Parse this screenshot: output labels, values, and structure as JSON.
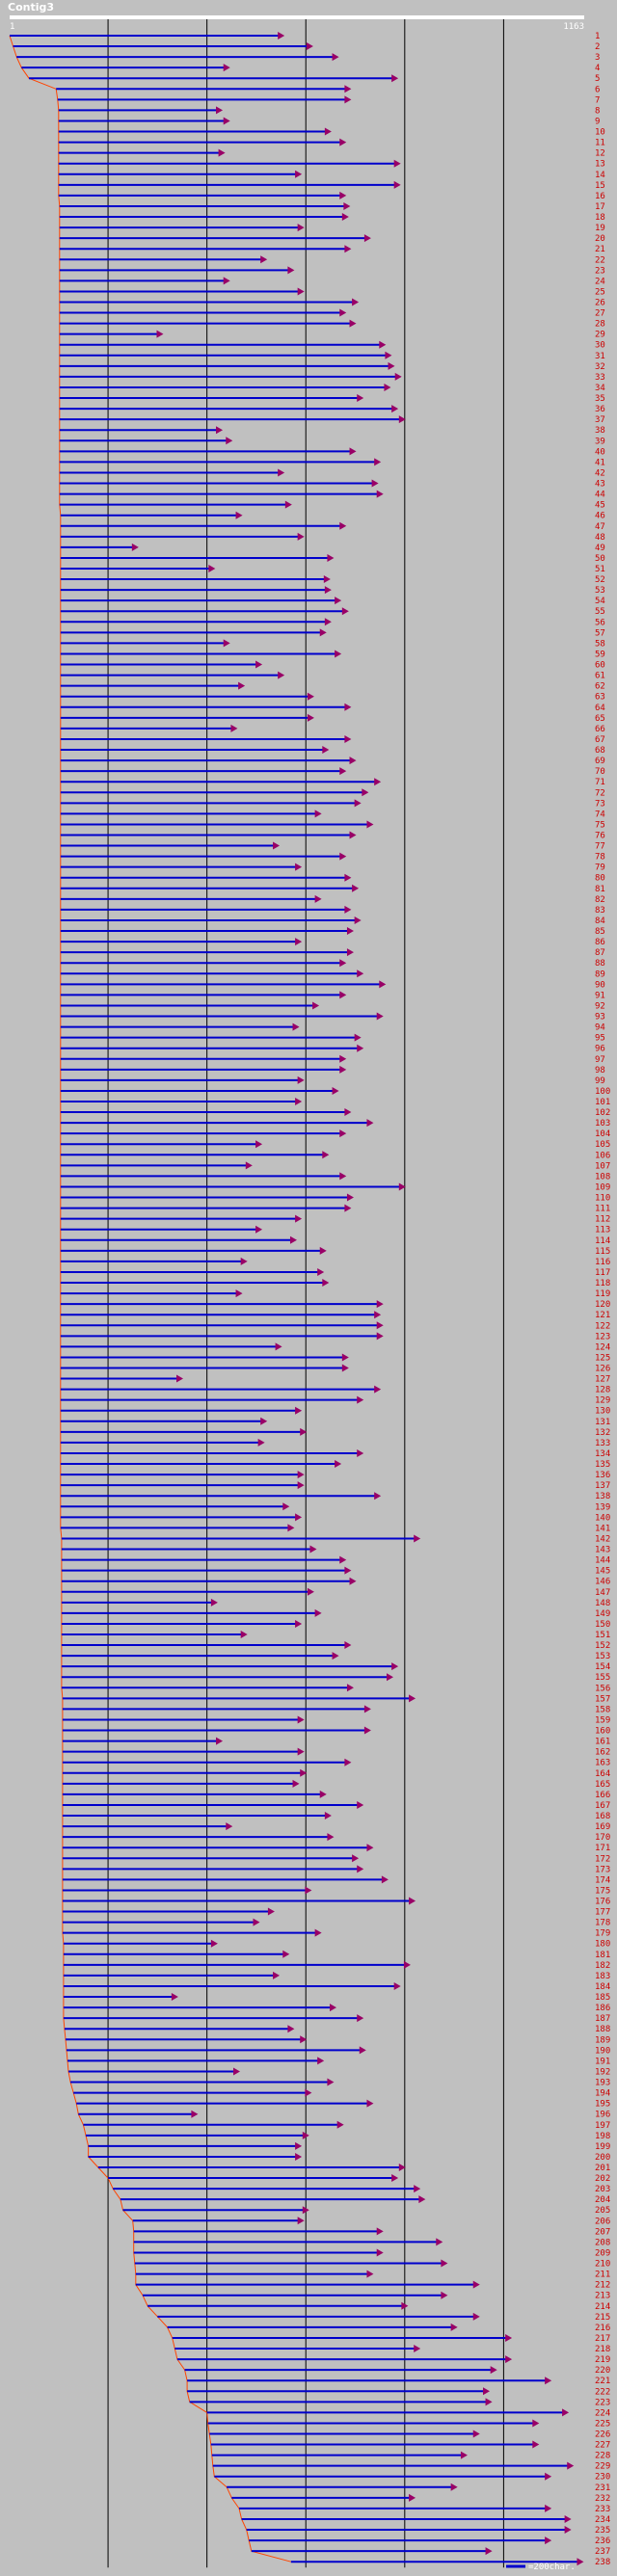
{
  "chart_data": {
    "type": "read-alignment",
    "title": "Contig3",
    "x_min_label": "1",
    "x_max_label": "1163",
    "xlim": [
      1,
      1163
    ],
    "grid_positions": [
      200,
      400,
      600,
      800,
      1000
    ],
    "legend": "=200char.",
    "colors": {
      "read": "#0000cc",
      "arrow": "#990066",
      "label": "#cc0000",
      "start_trace": "#ff4400",
      "grid": "#000000",
      "ruler": "#ffffff",
      "background": "#c0c0c0"
    },
    "reads": [
      {
        "id": "1",
        "start": 1,
        "end": 555
      },
      {
        "id": "2",
        "start": 8,
        "end": 613
      },
      {
        "id": "3",
        "start": 15,
        "end": 665
      },
      {
        "id": "4",
        "start": 25,
        "end": 445
      },
      {
        "id": "5",
        "start": 40,
        "end": 785
      },
      {
        "id": "6",
        "start": 95,
        "end": 690
      },
      {
        "id": "7",
        "start": 98,
        "end": 690
      },
      {
        "id": "8",
        "start": 100,
        "end": 430
      },
      {
        "id": "9",
        "start": 100,
        "end": 445
      },
      {
        "id": "10",
        "start": 100,
        "end": 650
      },
      {
        "id": "11",
        "start": 100,
        "end": 680
      },
      {
        "id": "12",
        "start": 100,
        "end": 435
      },
      {
        "id": "13",
        "start": 100,
        "end": 790
      },
      {
        "id": "14",
        "start": 100,
        "end": 590
      },
      {
        "id": "15",
        "start": 100,
        "end": 790
      },
      {
        "id": "16",
        "start": 100,
        "end": 680
      },
      {
        "id": "17",
        "start": 102,
        "end": 688
      },
      {
        "id": "18",
        "start": 102,
        "end": 685
      },
      {
        "id": "19",
        "start": 102,
        "end": 595
      },
      {
        "id": "20",
        "start": 102,
        "end": 730
      },
      {
        "id": "21",
        "start": 102,
        "end": 690
      },
      {
        "id": "22",
        "start": 102,
        "end": 520
      },
      {
        "id": "23",
        "start": 102,
        "end": 575
      },
      {
        "id": "24",
        "start": 102,
        "end": 445
      },
      {
        "id": "25",
        "start": 102,
        "end": 595
      },
      {
        "id": "26",
        "start": 102,
        "end": 705
      },
      {
        "id": "27",
        "start": 102,
        "end": 680
      },
      {
        "id": "28",
        "start": 102,
        "end": 700
      },
      {
        "id": "29",
        "start": 102,
        "end": 310
      },
      {
        "id": "30",
        "start": 102,
        "end": 760
      },
      {
        "id": "31",
        "start": 102,
        "end": 772
      },
      {
        "id": "32",
        "start": 102,
        "end": 778
      },
      {
        "id": "33",
        "start": 102,
        "end": 792
      },
      {
        "id": "34",
        "start": 102,
        "end": 770
      },
      {
        "id": "35",
        "start": 102,
        "end": 715
      },
      {
        "id": "36",
        "start": 102,
        "end": 785
      },
      {
        "id": "37",
        "start": 102,
        "end": 800
      },
      {
        "id": "38",
        "start": 102,
        "end": 430
      },
      {
        "id": "39",
        "start": 102,
        "end": 450
      },
      {
        "id": "40",
        "start": 102,
        "end": 700
      },
      {
        "id": "41",
        "start": 102,
        "end": 750
      },
      {
        "id": "42",
        "start": 102,
        "end": 555
      },
      {
        "id": "43",
        "start": 102,
        "end": 745
      },
      {
        "id": "44",
        "start": 102,
        "end": 755
      },
      {
        "id": "45",
        "start": 102,
        "end": 570
      },
      {
        "id": "46",
        "start": 104,
        "end": 470
      },
      {
        "id": "47",
        "start": 104,
        "end": 680
      },
      {
        "id": "48",
        "start": 104,
        "end": 595
      },
      {
        "id": "49",
        "start": 104,
        "end": 260
      },
      {
        "id": "50",
        "start": 104,
        "end": 655
      },
      {
        "id": "51",
        "start": 104,
        "end": 415
      },
      {
        "id": "52",
        "start": 104,
        "end": 648
      },
      {
        "id": "53",
        "start": 104,
        "end": 650
      },
      {
        "id": "54",
        "start": 104,
        "end": 670
      },
      {
        "id": "55",
        "start": 104,
        "end": 685
      },
      {
        "id": "56",
        "start": 104,
        "end": 650
      },
      {
        "id": "57",
        "start": 104,
        "end": 640
      },
      {
        "id": "58",
        "start": 104,
        "end": 445
      },
      {
        "id": "59",
        "start": 104,
        "end": 670
      },
      {
        "id": "60",
        "start": 104,
        "end": 510
      },
      {
        "id": "61",
        "start": 104,
        "end": 555
      },
      {
        "id": "62",
        "start": 104,
        "end": 475
      },
      {
        "id": "63",
        "start": 104,
        "end": 615
      },
      {
        "id": "64",
        "start": 104,
        "end": 690
      },
      {
        "id": "65",
        "start": 104,
        "end": 615
      },
      {
        "id": "66",
        "start": 104,
        "end": 460
      },
      {
        "id": "67",
        "start": 104,
        "end": 690
      },
      {
        "id": "68",
        "start": 104,
        "end": 645
      },
      {
        "id": "69",
        "start": 104,
        "end": 700
      },
      {
        "id": "70",
        "start": 104,
        "end": 680
      },
      {
        "id": "71",
        "start": 104,
        "end": 750
      },
      {
        "id": "72",
        "start": 104,
        "end": 725
      },
      {
        "id": "73",
        "start": 104,
        "end": 710
      },
      {
        "id": "74",
        "start": 104,
        "end": 630
      },
      {
        "id": "75",
        "start": 104,
        "end": 735
      },
      {
        "id": "76",
        "start": 104,
        "end": 700
      },
      {
        "id": "77",
        "start": 104,
        "end": 545
      },
      {
        "id": "78",
        "start": 104,
        "end": 680
      },
      {
        "id": "79",
        "start": 104,
        "end": 590
      },
      {
        "id": "80",
        "start": 104,
        "end": 690
      },
      {
        "id": "81",
        "start": 104,
        "end": 705
      },
      {
        "id": "82",
        "start": 104,
        "end": 630
      },
      {
        "id": "83",
        "start": 104,
        "end": 690
      },
      {
        "id": "84",
        "start": 104,
        "end": 710
      },
      {
        "id": "85",
        "start": 104,
        "end": 695
      },
      {
        "id": "86",
        "start": 104,
        "end": 590
      },
      {
        "id": "87",
        "start": 104,
        "end": 695
      },
      {
        "id": "88",
        "start": 104,
        "end": 680
      },
      {
        "id": "89",
        "start": 104,
        "end": 715
      },
      {
        "id": "90",
        "start": 104,
        "end": 760
      },
      {
        "id": "91",
        "start": 104,
        "end": 680
      },
      {
        "id": "92",
        "start": 104,
        "end": 625
      },
      {
        "id": "93",
        "start": 104,
        "end": 755
      },
      {
        "id": "94",
        "start": 104,
        "end": 585
      },
      {
        "id": "95",
        "start": 104,
        "end": 710
      },
      {
        "id": "96",
        "start": 104,
        "end": 715
      },
      {
        "id": "97",
        "start": 104,
        "end": 680
      },
      {
        "id": "98",
        "start": 104,
        "end": 680
      },
      {
        "id": "99",
        "start": 104,
        "end": 595
      },
      {
        "id": "100",
        "start": 104,
        "end": 665
      },
      {
        "id": "101",
        "start": 104,
        "end": 590
      },
      {
        "id": "102",
        "start": 104,
        "end": 690
      },
      {
        "id": "103",
        "start": 104,
        "end": 735
      },
      {
        "id": "104",
        "start": 104,
        "end": 680
      },
      {
        "id": "105",
        "start": 104,
        "end": 510
      },
      {
        "id": "106",
        "start": 104,
        "end": 645
      },
      {
        "id": "107",
        "start": 104,
        "end": 490
      },
      {
        "id": "108",
        "start": 104,
        "end": 680
      },
      {
        "id": "109",
        "start": 104,
        "end": 800
      },
      {
        "id": "110",
        "start": 104,
        "end": 695
      },
      {
        "id": "111",
        "start": 104,
        "end": 690
      },
      {
        "id": "112",
        "start": 104,
        "end": 590
      },
      {
        "id": "113",
        "start": 104,
        "end": 510
      },
      {
        "id": "114",
        "start": 104,
        "end": 580
      },
      {
        "id": "115",
        "start": 104,
        "end": 640
      },
      {
        "id": "116",
        "start": 104,
        "end": 480
      },
      {
        "id": "117",
        "start": 104,
        "end": 635
      },
      {
        "id": "118",
        "start": 104,
        "end": 645
      },
      {
        "id": "119",
        "start": 104,
        "end": 470
      },
      {
        "id": "120",
        "start": 104,
        "end": 755
      },
      {
        "id": "121",
        "start": 104,
        "end": 750
      },
      {
        "id": "122",
        "start": 104,
        "end": 755
      },
      {
        "id": "123",
        "start": 104,
        "end": 755
      },
      {
        "id": "124",
        "start": 104,
        "end": 550
      },
      {
        "id": "125",
        "start": 104,
        "end": 685
      },
      {
        "id": "126",
        "start": 104,
        "end": 685
      },
      {
        "id": "127",
        "start": 104,
        "end": 350
      },
      {
        "id": "128",
        "start": 104,
        "end": 750
      },
      {
        "id": "129",
        "start": 104,
        "end": 715
      },
      {
        "id": "130",
        "start": 104,
        "end": 590
      },
      {
        "id": "131",
        "start": 104,
        "end": 520
      },
      {
        "id": "132",
        "start": 104,
        "end": 600
      },
      {
        "id": "133",
        "start": 104,
        "end": 515
      },
      {
        "id": "134",
        "start": 104,
        "end": 715
      },
      {
        "id": "135",
        "start": 104,
        "end": 670
      },
      {
        "id": "136",
        "start": 104,
        "end": 595
      },
      {
        "id": "137",
        "start": 104,
        "end": 595
      },
      {
        "id": "138",
        "start": 104,
        "end": 750
      },
      {
        "id": "139",
        "start": 104,
        "end": 565
      },
      {
        "id": "140",
        "start": 104,
        "end": 590
      },
      {
        "id": "141",
        "start": 104,
        "end": 575
      },
      {
        "id": "142",
        "start": 106,
        "end": 830
      },
      {
        "id": "143",
        "start": 106,
        "end": 620
      },
      {
        "id": "144",
        "start": 106,
        "end": 680
      },
      {
        "id": "145",
        "start": 106,
        "end": 690
      },
      {
        "id": "146",
        "start": 106,
        "end": 700
      },
      {
        "id": "147",
        "start": 106,
        "end": 615
      },
      {
        "id": "148",
        "start": 106,
        "end": 420
      },
      {
        "id": "149",
        "start": 106,
        "end": 630
      },
      {
        "id": "150",
        "start": 106,
        "end": 590
      },
      {
        "id": "151",
        "start": 106,
        "end": 480
      },
      {
        "id": "152",
        "start": 106,
        "end": 690
      },
      {
        "id": "153",
        "start": 106,
        "end": 665
      },
      {
        "id": "154",
        "start": 106,
        "end": 785
      },
      {
        "id": "155",
        "start": 106,
        "end": 775
      },
      {
        "id": "156",
        "start": 106,
        "end": 695
      },
      {
        "id": "157",
        "start": 108,
        "end": 820
      },
      {
        "id": "158",
        "start": 108,
        "end": 730
      },
      {
        "id": "159",
        "start": 108,
        "end": 595
      },
      {
        "id": "160",
        "start": 108,
        "end": 730
      },
      {
        "id": "161",
        "start": 108,
        "end": 430
      },
      {
        "id": "162",
        "start": 108,
        "end": 595
      },
      {
        "id": "163",
        "start": 108,
        "end": 690
      },
      {
        "id": "164",
        "start": 108,
        "end": 600
      },
      {
        "id": "165",
        "start": 108,
        "end": 585
      },
      {
        "id": "166",
        "start": 108,
        "end": 640
      },
      {
        "id": "167",
        "start": 108,
        "end": 715
      },
      {
        "id": "168",
        "start": 108,
        "end": 650
      },
      {
        "id": "169",
        "start": 108,
        "end": 450
      },
      {
        "id": "170",
        "start": 108,
        "end": 655
      },
      {
        "id": "171",
        "start": 108,
        "end": 735
      },
      {
        "id": "172",
        "start": 108,
        "end": 705
      },
      {
        "id": "173",
        "start": 108,
        "end": 715
      },
      {
        "id": "174",
        "start": 108,
        "end": 765
      },
      {
        "id": "175",
        "start": 108,
        "end": 610
      },
      {
        "id": "176",
        "start": 108,
        "end": 820
      },
      {
        "id": "177",
        "start": 108,
        "end": 535
      },
      {
        "id": "178",
        "start": 108,
        "end": 505
      },
      {
        "id": "179",
        "start": 108,
        "end": 630
      },
      {
        "id": "180",
        "start": 110,
        "end": 420
      },
      {
        "id": "181",
        "start": 110,
        "end": 565
      },
      {
        "id": "182",
        "start": 110,
        "end": 810
      },
      {
        "id": "183",
        "start": 110,
        "end": 545
      },
      {
        "id": "184",
        "start": 110,
        "end": 790
      },
      {
        "id": "185",
        "start": 110,
        "end": 340
      },
      {
        "id": "186",
        "start": 110,
        "end": 660
      },
      {
        "id": "187",
        "start": 110,
        "end": 715
      },
      {
        "id": "188",
        "start": 112,
        "end": 575
      },
      {
        "id": "189",
        "start": 114,
        "end": 600
      },
      {
        "id": "190",
        "start": 116,
        "end": 720
      },
      {
        "id": "191",
        "start": 118,
        "end": 635
      },
      {
        "id": "192",
        "start": 120,
        "end": 465
      },
      {
        "id": "193",
        "start": 124,
        "end": 655
      },
      {
        "id": "194",
        "start": 130,
        "end": 610
      },
      {
        "id": "195",
        "start": 136,
        "end": 735
      },
      {
        "id": "196",
        "start": 140,
        "end": 380
      },
      {
        "id": "197",
        "start": 150,
        "end": 675
      },
      {
        "id": "198",
        "start": 155,
        "end": 605
      },
      {
        "id": "199",
        "start": 160,
        "end": 590
      },
      {
        "id": "200",
        "start": 160,
        "end": 590
      },
      {
        "id": "201",
        "start": 180,
        "end": 800
      },
      {
        "id": "202",
        "start": 200,
        "end": 785
      },
      {
        "id": "203",
        "start": 210,
        "end": 830
      },
      {
        "id": "204",
        "start": 225,
        "end": 840
      },
      {
        "id": "205",
        "start": 230,
        "end": 605
      },
      {
        "id": "206",
        "start": 250,
        "end": 595
      },
      {
        "id": "207",
        "start": 252,
        "end": 755
      },
      {
        "id": "208",
        "start": 252,
        "end": 875
      },
      {
        "id": "209",
        "start": 252,
        "end": 755
      },
      {
        "id": "210",
        "start": 254,
        "end": 885
      },
      {
        "id": "211",
        "start": 256,
        "end": 735
      },
      {
        "id": "212",
        "start": 256,
        "end": 950
      },
      {
        "id": "213",
        "start": 270,
        "end": 885
      },
      {
        "id": "214",
        "start": 280,
        "end": 805
      },
      {
        "id": "215",
        "start": 300,
        "end": 950
      },
      {
        "id": "216",
        "start": 320,
        "end": 905
      },
      {
        "id": "217",
        "start": 330,
        "end": 1015
      },
      {
        "id": "218",
        "start": 335,
        "end": 830
      },
      {
        "id": "219",
        "start": 340,
        "end": 1015
      },
      {
        "id": "220",
        "start": 355,
        "end": 985
      },
      {
        "id": "221",
        "start": 360,
        "end": 1095
      },
      {
        "id": "222",
        "start": 360,
        "end": 970
      },
      {
        "id": "223",
        "start": 365,
        "end": 975
      },
      {
        "id": "224",
        "start": 400,
        "end": 1130
      },
      {
        "id": "225",
        "start": 402,
        "end": 1070
      },
      {
        "id": "226",
        "start": 405,
        "end": 950
      },
      {
        "id": "227",
        "start": 408,
        "end": 1070
      },
      {
        "id": "228",
        "start": 410,
        "end": 925
      },
      {
        "id": "229",
        "start": 412,
        "end": 1140
      },
      {
        "id": "230",
        "start": 415,
        "end": 1095
      },
      {
        "id": "231",
        "start": 440,
        "end": 905
      },
      {
        "id": "232",
        "start": 450,
        "end": 820
      },
      {
        "id": "233",
        "start": 465,
        "end": 1095
      },
      {
        "id": "234",
        "start": 470,
        "end": 1135
      },
      {
        "id": "235",
        "start": 480,
        "end": 1135
      },
      {
        "id": "236",
        "start": 485,
        "end": 1095
      },
      {
        "id": "237",
        "start": 490,
        "end": 975
      },
      {
        "id": "238",
        "start": 570,
        "end": 1160
      }
    ]
  }
}
